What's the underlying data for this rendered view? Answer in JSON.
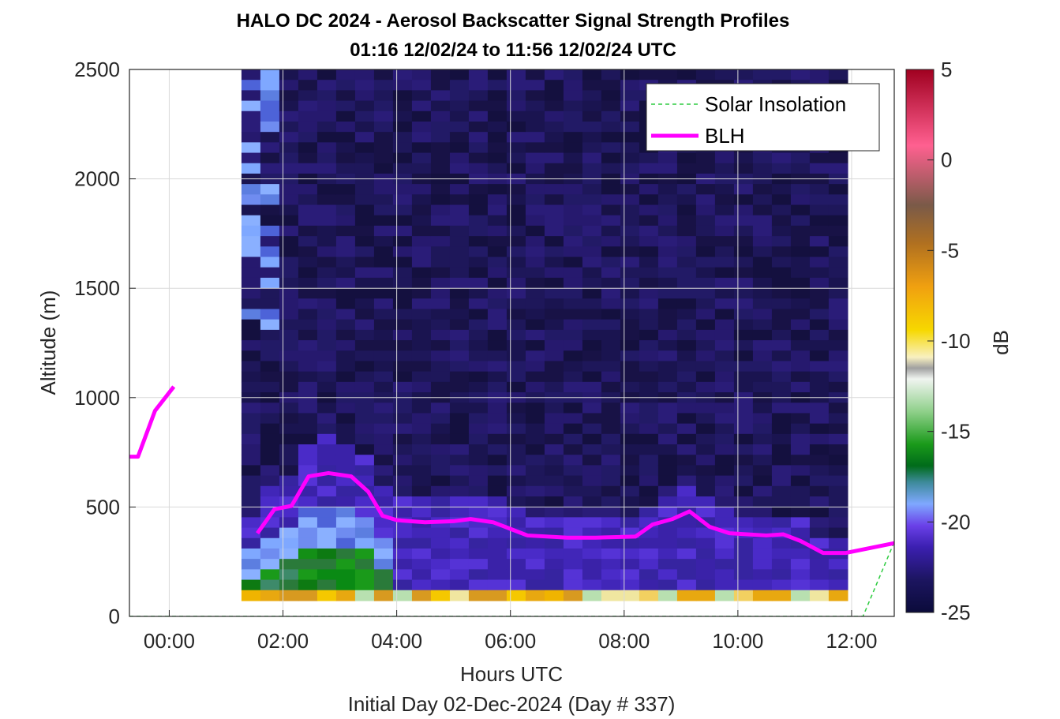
{
  "chart_data": {
    "type": "heatmap",
    "title": "HALO DC 2024 - Aerosol Backscatter Signal Strength Profiles",
    "subtitle": "01:16 12/02/24 to 11:56 12/02/24  UTC",
    "xlabel": "Hours UTC",
    "xlabel2": "Initial Day 02-Dec-2024 (Day # 337)",
    "ylabel": "Altitude (m)",
    "xlim_hours": [
      -0.7,
      12.75
    ],
    "ylim": [
      0,
      2500
    ],
    "x_ticks": [
      {
        "value": 0,
        "label": "00:00"
      },
      {
        "value": 2,
        "label": "02:00"
      },
      {
        "value": 4,
        "label": "04:00"
      },
      {
        "value": 6,
        "label": "06:00"
      },
      {
        "value": 8,
        "label": "08:00"
      },
      {
        "value": 10,
        "label": "10:00"
      },
      {
        "value": 12,
        "label": "12:00"
      }
    ],
    "y_ticks": [
      {
        "value": 0,
        "label": "0"
      },
      {
        "value": 500,
        "label": "500"
      },
      {
        "value": 1000,
        "label": "1000"
      },
      {
        "value": 1500,
        "label": "1500"
      },
      {
        "value": 2000,
        "label": "2000"
      },
      {
        "value": 2500,
        "label": "2500"
      }
    ],
    "grid": true,
    "colorbar": {
      "label": "dB",
      "range": [
        -25,
        5
      ],
      "ticks": [
        {
          "value": 5,
          "label": "5"
        },
        {
          "value": 0,
          "label": "0"
        },
        {
          "value": -5,
          "label": "-5"
        },
        {
          "value": -10,
          "label": "-10"
        },
        {
          "value": -15,
          "label": "-15"
        },
        {
          "value": -20,
          "label": "-20"
        },
        {
          "value": -25,
          "label": "-25"
        }
      ]
    },
    "legend": {
      "placement": "top-right",
      "entries": [
        {
          "label": "Solar Insolation",
          "color": "#2ecc40",
          "style": "dashed"
        },
        {
          "label": "BLH",
          "color": "#ff00ff",
          "style": "solid"
        }
      ]
    },
    "heatmap_extent": {
      "x_start_hours": 1.27,
      "x_end_hours": 11.93,
      "y_start_m": 120,
      "y_end_m": 2500
    },
    "series": [
      {
        "name": "BLH",
        "color": "#ff00ff",
        "segments": [
          {
            "x": [
              -0.7,
              -0.55,
              -0.25,
              0.08
            ],
            "y": [
              730,
              730,
              940,
              1050
            ]
          },
          {
            "x": [
              1.55,
              1.85,
              2.15,
              2.45,
              2.8,
              3.2,
              3.5,
              3.75,
              4.0,
              4.5,
              5.0,
              5.3,
              5.7,
              6.0,
              6.3,
              7.0,
              7.5,
              8.2,
              8.5,
              8.85,
              9.15,
              9.5,
              9.85,
              10.5,
              10.8,
              11.1,
              11.5,
              11.9,
              12.75
            ],
            "y": [
              380,
              490,
              505,
              640,
              655,
              640,
              570,
              460,
              440,
              430,
              435,
              445,
              430,
              400,
              370,
              360,
              360,
              365,
              420,
              445,
              480,
              410,
              380,
              370,
              375,
              345,
              290,
              290,
              335
            ]
          }
        ]
      },
      {
        "name": "Solar Insolation",
        "color": "#2ecc40",
        "x": [
          -0.7,
          12.2,
          12.75
        ],
        "y": [
          0,
          0,
          340
        ]
      }
    ]
  }
}
